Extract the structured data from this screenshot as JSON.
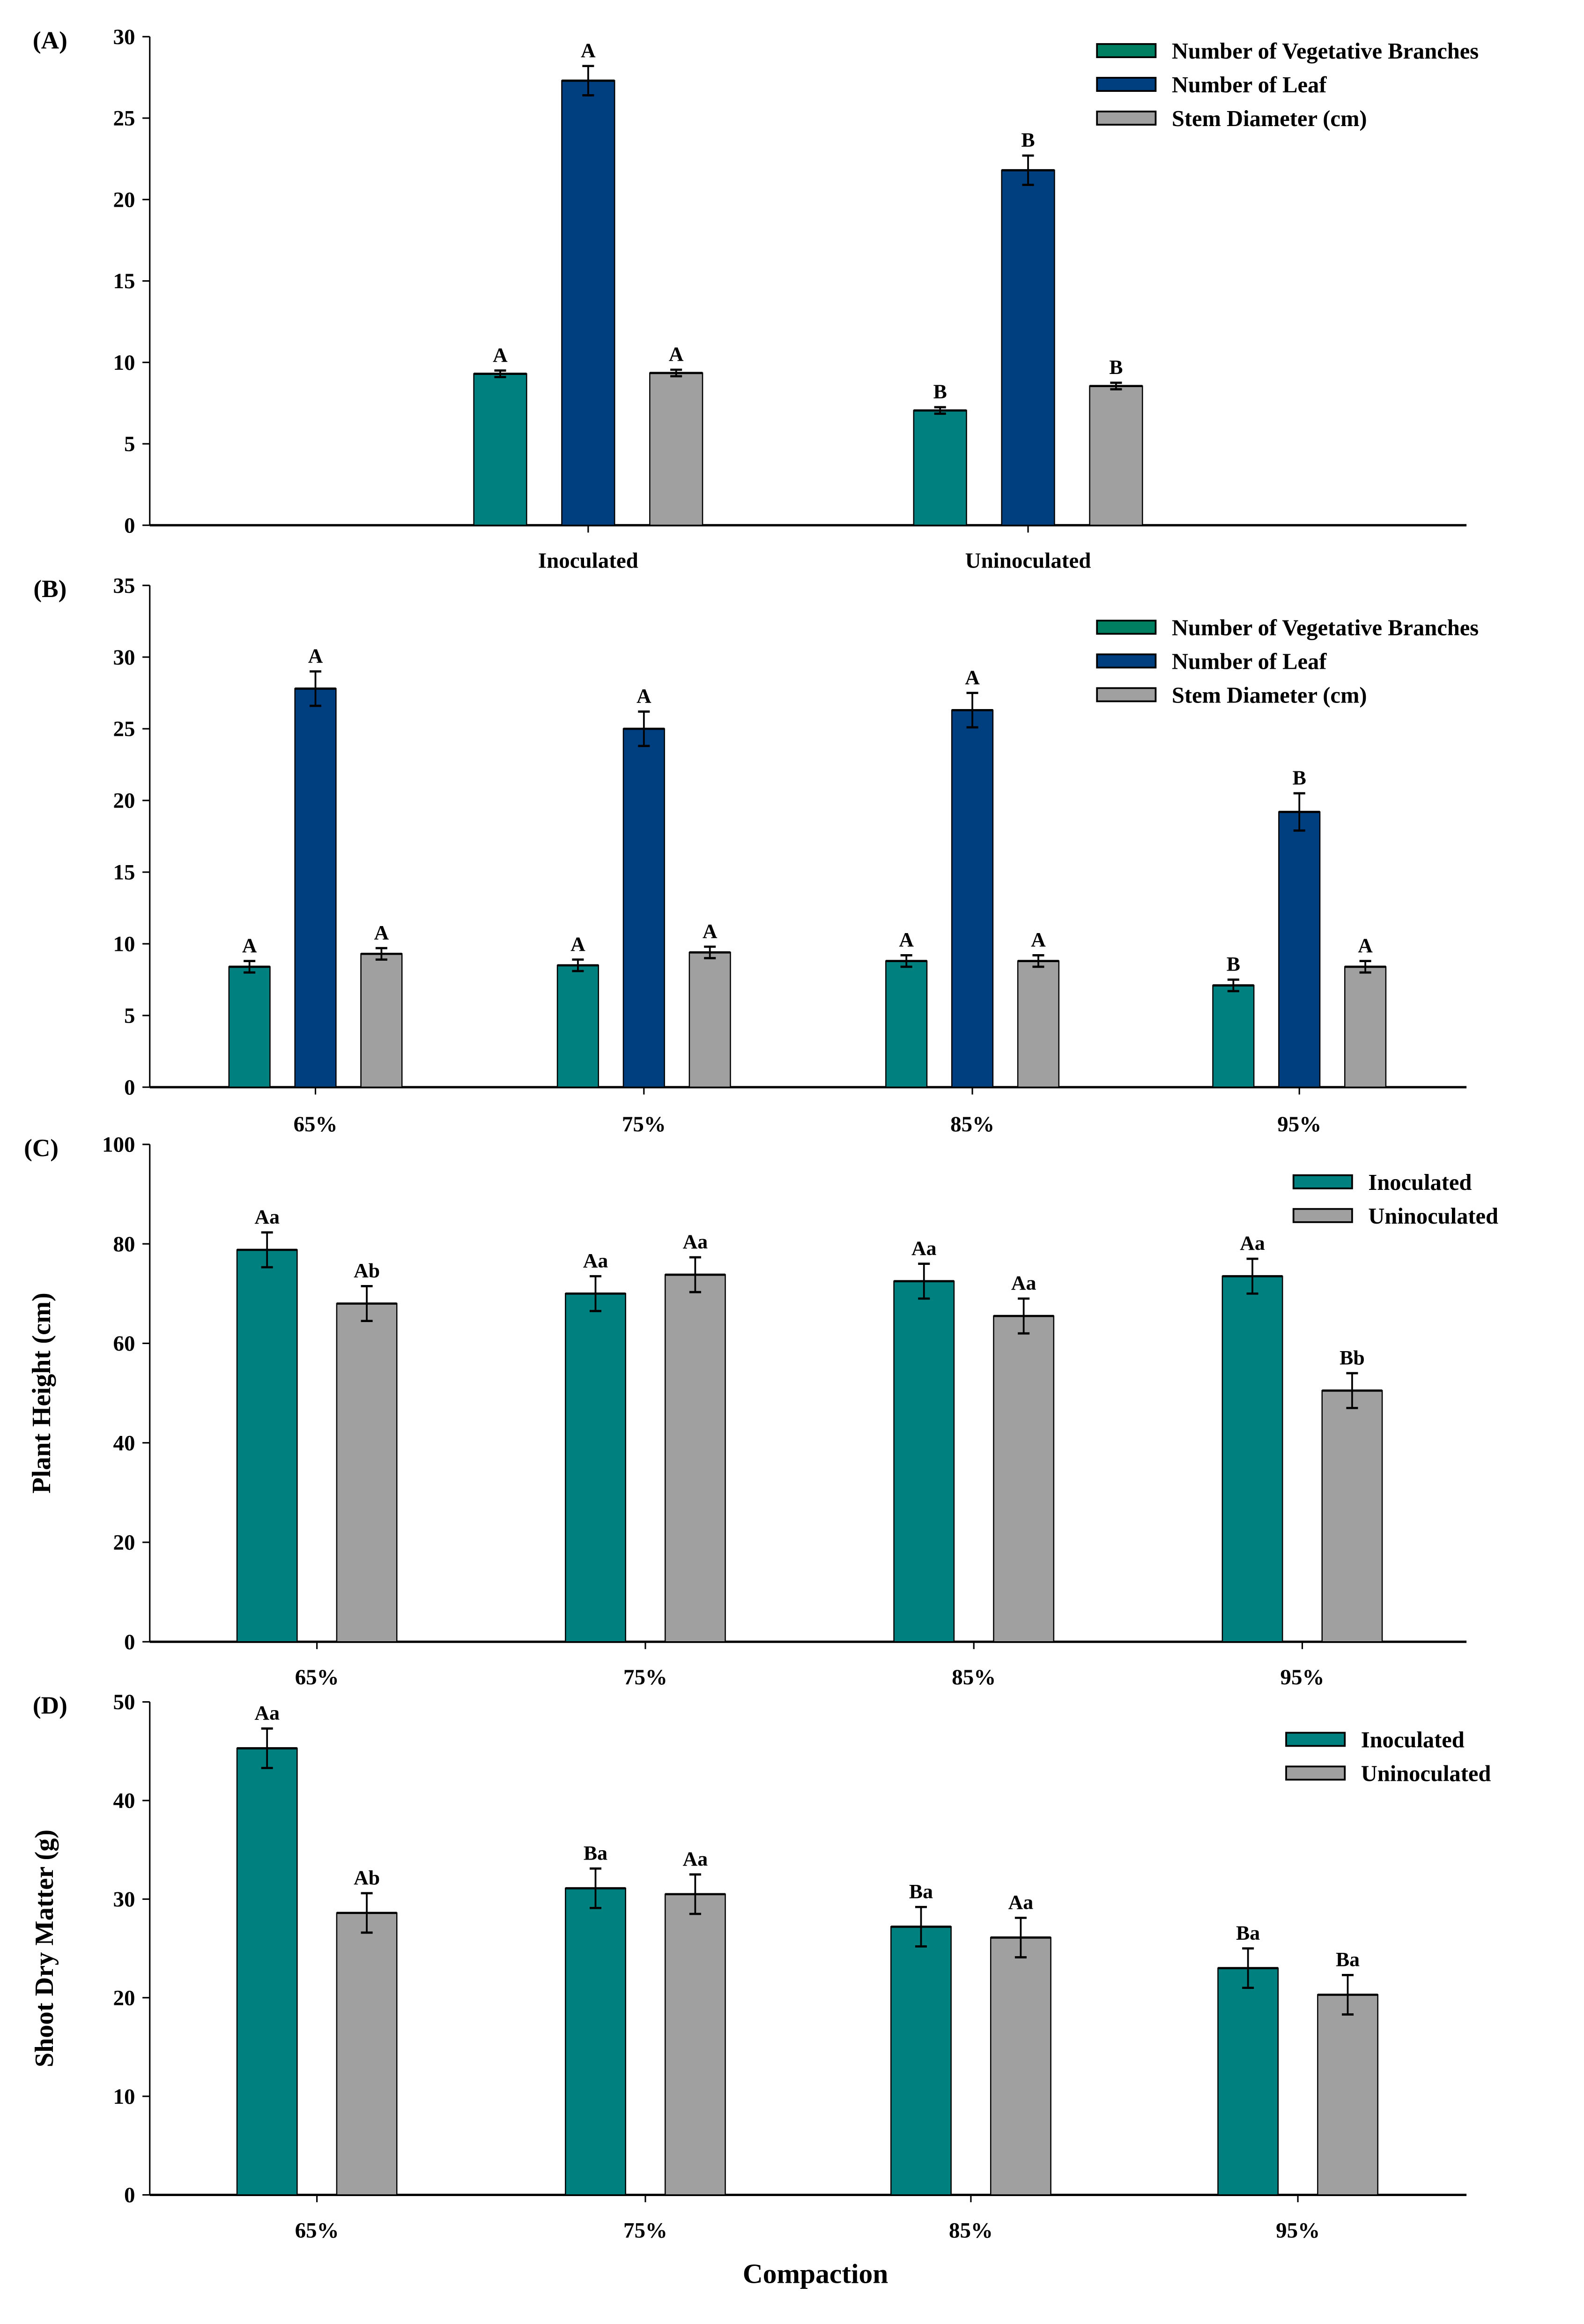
{
  "colors": {
    "teal": "#00807f",
    "teal_legend": "#008060",
    "navy": "#003f7f",
    "gray": "#a0a0a0"
  },
  "chart_data": [
    {
      "type": "bar",
      "panel_label": "(A)",
      "ylabel": "",
      "xlabel": "",
      "ylim": [
        0,
        30
      ],
      "yticks": [
        0,
        5,
        10,
        15,
        20,
        25,
        30
      ],
      "legend_position": "top-right",
      "categories": [
        "Inoculated",
        "Uninoculated"
      ],
      "series": [
        {
          "name": "Number of Vegetative Branches",
          "color": "teal",
          "legend_color": "teal_legend",
          "values": [
            9.3,
            7.05
          ],
          "errors": [
            0.2,
            0.2
          ],
          "letters": [
            "A",
            "B"
          ]
        },
        {
          "name": "Number of  Leaf",
          "color": "navy",
          "values": [
            27.3,
            21.8
          ],
          "errors": [
            0.9,
            0.9
          ],
          "letters": [
            "A",
            "B"
          ]
        },
        {
          "name": "Stem Diameter (cm)",
          "color": "gray",
          "values": [
            9.35,
            8.55
          ],
          "errors": [
            0.2,
            0.2
          ],
          "letters": [
            "A",
            "B"
          ]
        }
      ]
    },
    {
      "type": "bar",
      "panel_label": "(B)",
      "ylabel": "",
      "xlabel": "",
      "ylim": [
        0,
        35
      ],
      "yticks": [
        0,
        5,
        10,
        15,
        20,
        25,
        30,
        35
      ],
      "legend_position": "top-right",
      "categories": [
        "65%",
        "75%",
        "85%",
        "95%"
      ],
      "series": [
        {
          "name": "Number of Vegetative Branches",
          "color": "teal",
          "legend_color": "teal_legend",
          "values": [
            8.4,
            8.5,
            8.8,
            7.1
          ],
          "errors": [
            0.4,
            0.4,
            0.4,
            0.4
          ],
          "letters": [
            "A",
            "A",
            "A",
            "B"
          ]
        },
        {
          "name": "Number of  Leaf",
          "color": "navy",
          "values": [
            27.8,
            25.0,
            26.3,
            19.2
          ],
          "errors": [
            1.2,
            1.2,
            1.2,
            1.3
          ],
          "letters": [
            "A",
            "A",
            "A",
            "B"
          ]
        },
        {
          "name": "Stem Diameter (cm)",
          "color": "gray",
          "values": [
            9.3,
            9.4,
            8.8,
            8.4
          ],
          "errors": [
            0.4,
            0.4,
            0.4,
            0.4
          ],
          "letters": [
            "A",
            "A",
            "A",
            "A"
          ]
        }
      ]
    },
    {
      "type": "bar",
      "panel_label": "(C)",
      "ylabel": "Plant Height (cm)",
      "xlabel": "",
      "ylim": [
        0,
        100
      ],
      "yticks": [
        0,
        20,
        40,
        60,
        80,
        100
      ],
      "legend_position": "top-right",
      "categories": [
        "65%",
        "75%",
        "85%",
        "95%"
      ],
      "series": [
        {
          "name": "Inoculated",
          "color": "teal",
          "values": [
            78.8,
            70.0,
            72.5,
            73.5
          ],
          "errors": [
            3.5,
            3.5,
            3.5,
            3.5
          ],
          "letters": [
            "Aa",
            "Aa",
            "Aa",
            "Aa"
          ]
        },
        {
          "name": "Uninoculated",
          "color": "gray",
          "values": [
            68.0,
            73.8,
            65.5,
            50.5
          ],
          "errors": [
            3.5,
            3.5,
            3.5,
            3.5
          ],
          "letters": [
            "Ab",
            "Aa",
            "Aa",
            "Bb"
          ]
        }
      ]
    },
    {
      "type": "bar",
      "panel_label": "(D)",
      "ylabel": "Shoot Dry Matter  (g)",
      "xlabel": "Compaction",
      "ylim": [
        0,
        50
      ],
      "yticks": [
        0,
        10,
        20,
        30,
        40,
        50
      ],
      "legend_position": "top-right",
      "categories": [
        "65%",
        "75%",
        "85%",
        "95%"
      ],
      "series": [
        {
          "name": "Inoculated",
          "color": "teal",
          "values": [
            45.3,
            31.1,
            27.2,
            23.0
          ],
          "errors": [
            2.0,
            2.0,
            2.0,
            2.0
          ],
          "letters": [
            "Aa",
            "Ba",
            "Ba",
            "Ba"
          ]
        },
        {
          "name": "Uninoculated",
          "color": "gray",
          "values": [
            28.6,
            30.5,
            26.1,
            20.3
          ],
          "errors": [
            2.0,
            2.0,
            2.0,
            2.0
          ],
          "letters": [
            "Ab",
            "Aa",
            "Aa",
            "Ba"
          ]
        }
      ]
    }
  ]
}
